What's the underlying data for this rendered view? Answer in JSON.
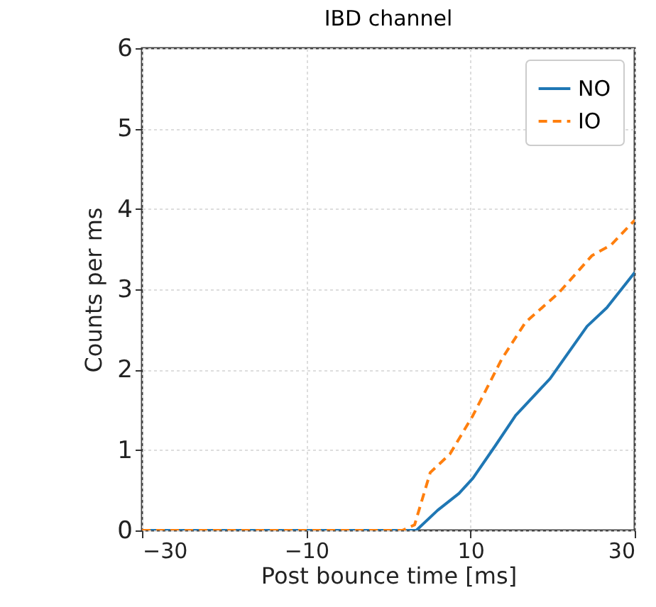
{
  "chart_data": {
    "type": "line",
    "title": "IBD channel",
    "xlabel": "Post bounce time [ms]",
    "ylabel": "Counts per ms",
    "xlim": [
      -30,
      30
    ],
    "xticks": [
      -30,
      -10,
      10,
      30
    ],
    "ylim": [
      0,
      6
    ],
    "yticks": [
      0,
      1,
      2,
      3,
      4,
      5,
      6
    ],
    "grid": true,
    "legend": "top right",
    "series": [
      {
        "name": "NO",
        "color": "#1f77b4",
        "line_style": "solid",
        "x": [
          -30,
          3.4,
          6,
          8.6,
          10.3,
          13,
          15.5,
          19.7,
          24.2,
          26.6,
          30
        ],
        "values": [
          0,
          0,
          0.25,
          0.46,
          0.65,
          1.05,
          1.43,
          1.89,
          2.54,
          2.77,
          3.21
        ]
      },
      {
        "name": "IO",
        "color": "#ff7f0e",
        "line_style": "dashed",
        "x": [
          -30,
          1.7,
          3.2,
          5.1,
          7.5,
          10.3,
          13.8,
          16.7,
          20.7,
          24.8,
          27.1,
          30
        ],
        "values": [
          0,
          0,
          0.07,
          0.72,
          0.95,
          1.43,
          2.13,
          2.59,
          2.95,
          3.42,
          3.55,
          3.86
        ]
      }
    ]
  }
}
